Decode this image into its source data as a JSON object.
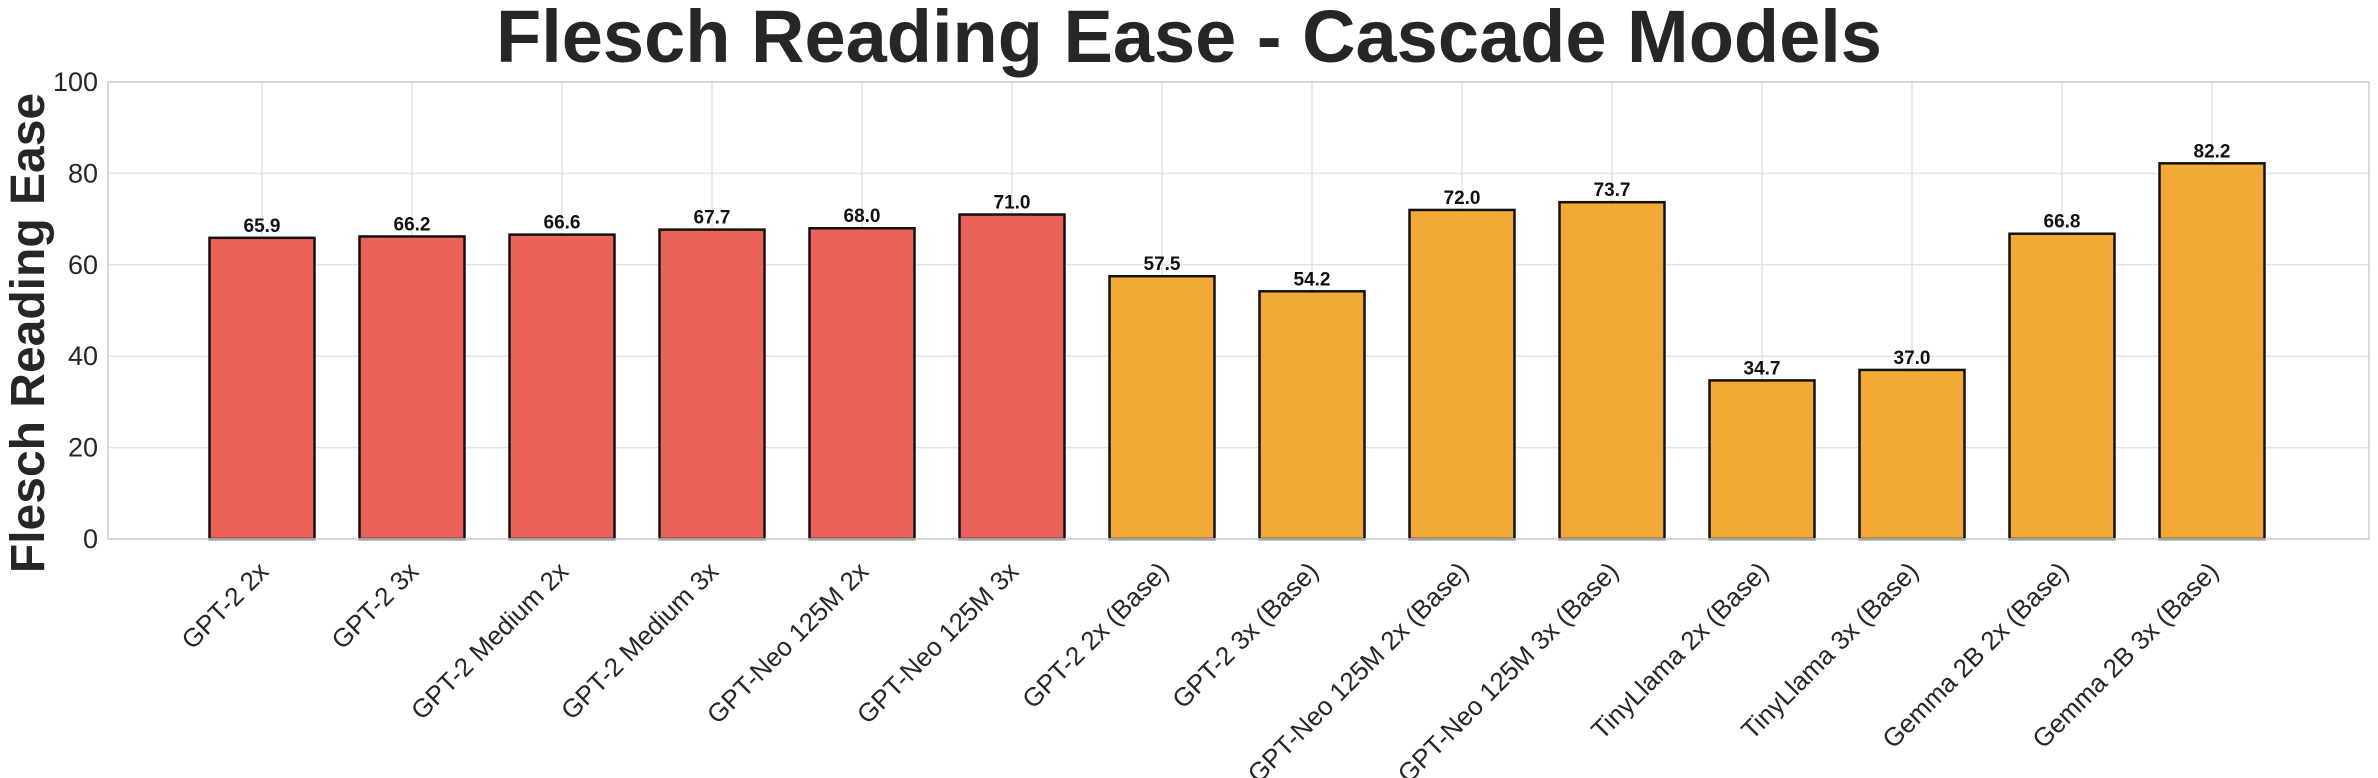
{
  "chart_data": {
    "type": "bar",
    "title": "Flesch Reading Ease - Cascade Models",
    "xlabel": "",
    "ylabel": "Flesch Reading Ease",
    "ylim": [
      0,
      100
    ],
    "yticks": [
      0,
      20,
      40,
      60,
      80,
      100
    ],
    "grid": true,
    "categories": [
      "GPT-2 2x",
      "GPT-2 3x",
      "GPT-2 Medium 2x",
      "GPT-2 Medium 3x",
      "GPT-Neo 125M 2x",
      "GPT-Neo 125M 3x",
      "GPT-2 2x (Base)",
      "GPT-2 3x (Base)",
      "GPT-Neo 125M 2x (Base)",
      "GPT-Neo 125M 3x (Base)",
      "TinyLlama 2x (Base)",
      "TinyLlama 3x (Base)",
      "Gemma 2B 2x (Base)",
      "Gemma 2B 3x (Base)"
    ],
    "values": [
      65.9,
      66.2,
      66.6,
      67.7,
      68.0,
      71.0,
      57.5,
      54.2,
      72.0,
      73.7,
      34.7,
      37.0,
      66.8,
      82.2
    ],
    "value_labels": [
      "65.9",
      "66.2",
      "66.6",
      "67.7",
      "68.0",
      "71.0",
      "57.5",
      "54.2",
      "72.0",
      "73.7",
      "34.7",
      "37.0",
      "66.8",
      "82.2"
    ],
    "bar_colors": [
      "#ea5a4f",
      "#ea5a4f",
      "#ea5a4f",
      "#ea5a4f",
      "#ea5a4f",
      "#ea5a4f",
      "#f2a42a",
      "#f2a42a",
      "#f2a42a",
      "#f2a42a",
      "#f2a42a",
      "#f2a42a",
      "#f2a42a",
      "#f2a42a"
    ]
  }
}
